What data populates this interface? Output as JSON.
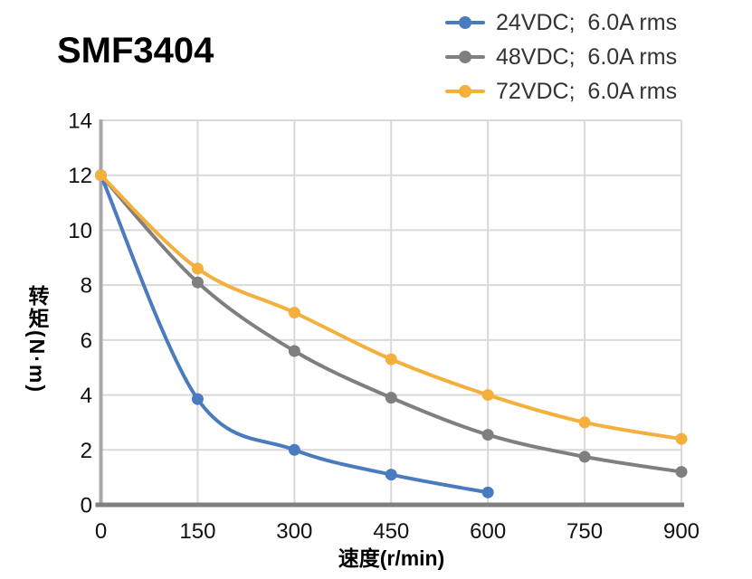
{
  "title": "SMF3404",
  "chart_data": {
    "type": "line",
    "title": "SMF3404",
    "xlabel": "速度(r/min)",
    "ylabel": "转矩(N·m)",
    "xlim": [
      0,
      900
    ],
    "ylim": [
      0,
      14
    ],
    "xticks": [
      0,
      150,
      300,
      450,
      600,
      750,
      900
    ],
    "yticks": [
      0,
      2,
      4,
      6,
      8,
      10,
      12,
      14
    ],
    "grid": true,
    "legend_position": "top-right",
    "colors": {
      "grid": "#D9D9D9",
      "y_axis": "#A8A8A8",
      "x_axis": "#7F7F7F",
      "tick_text": "#111111"
    },
    "series": [
      {
        "name": "24VDC;  6.0A rms",
        "color": "#4A7BBF",
        "points": [
          [
            0,
            12
          ],
          [
            150,
            3.85
          ],
          [
            300,
            2.0
          ],
          [
            450,
            1.1
          ],
          [
            600,
            0.45
          ]
        ]
      },
      {
        "name": "48VDC;  6.0A rms",
        "color": "#7F7F7F",
        "points": [
          [
            0,
            12
          ],
          [
            150,
            8.1
          ],
          [
            300,
            5.6
          ],
          [
            450,
            3.9
          ],
          [
            600,
            2.55
          ],
          [
            750,
            1.75
          ],
          [
            900,
            1.2
          ]
        ]
      },
      {
        "name": "72VDC;  6.0A rms",
        "color": "#F4AF3D",
        "points": [
          [
            0,
            12
          ],
          [
            150,
            8.6
          ],
          [
            300,
            7.0
          ],
          [
            450,
            5.3
          ],
          [
            600,
            4.0
          ],
          [
            750,
            3.0
          ],
          [
            900,
            2.4
          ]
        ]
      }
    ]
  }
}
